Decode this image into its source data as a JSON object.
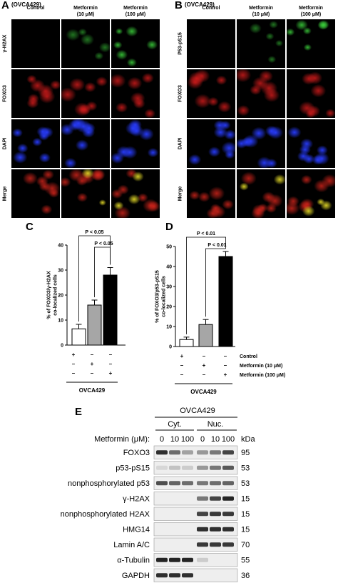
{
  "panelA": {
    "letter": "A",
    "cell_line": "(OVCA429)",
    "columns": [
      "Control",
      "Metformin\n(10 μM)",
      "Metformin\n(100 μM)"
    ],
    "rows": [
      "γ-H2AX",
      "FOXO3",
      "DAPI",
      "Merge"
    ]
  },
  "panelB": {
    "letter": "B",
    "cell_line": "(OVCA429)",
    "columns": [
      "Control",
      "Metformin\n(10 μM)",
      "Metformin\n(100 μM)"
    ],
    "rows": [
      "P53-pS15",
      "FOXO3",
      "DAPI",
      "Merge"
    ]
  },
  "chart_data": [
    {
      "type": "bar",
      "panel": "C",
      "categories": [
        "Control",
        "Metformin (10 μM)",
        "Metformin (100 μM)"
      ],
      "values": [
        6.5,
        16,
        28
      ],
      "errors": [
        1.8,
        2,
        3
      ],
      "colors": [
        "#ffffff",
        "#a6a6a6",
        "#000000"
      ],
      "ylabel": "% of FOXO3/γ-H2AX co-localized cells",
      "ylim": [
        0,
        40
      ],
      "yticks": [
        0,
        10,
        20,
        30,
        40
      ],
      "significance": [
        {
          "from": 0,
          "to": 2,
          "label": "P < 0.05"
        },
        {
          "from": 1,
          "to": 2,
          "label": "P < 0.05"
        }
      ],
      "xgroup_label": "OVCA429"
    },
    {
      "type": "bar",
      "panel": "D",
      "categories": [
        "Control",
        "Metformin (10 μM)",
        "Metformin (100 μM)"
      ],
      "values": [
        3.5,
        11,
        45
      ],
      "errors": [
        1.2,
        2.5,
        2.5
      ],
      "colors": [
        "#ffffff",
        "#a6a6a6",
        "#000000"
      ],
      "ylabel": "% of FOXO3/p53-pS15 co-localized cells",
      "ylim": [
        0,
        50
      ],
      "yticks": [
        0,
        10,
        20,
        30,
        40,
        50
      ],
      "significance": [
        {
          "from": 0,
          "to": 2,
          "label": "P < 0.01"
        },
        {
          "from": 1,
          "to": 2,
          "label": "P < 0.01"
        }
      ],
      "xgroup_label": "OVCA429"
    }
  ],
  "treatment_table": {
    "rows": [
      {
        "label": "Control",
        "signs": [
          "+",
          "–",
          "–"
        ]
      },
      {
        "label": "Metformin (10 μM)",
        "signs": [
          "–",
          "+",
          "–"
        ]
      },
      {
        "label": "Metformin (100 μM)",
        "signs": [
          "–",
          "–",
          "+"
        ]
      }
    ],
    "c_rows": [
      [
        "+",
        "–",
        "–"
      ],
      [
        "–",
        "+",
        "–"
      ],
      [
        "–",
        "–",
        "+"
      ]
    ]
  },
  "panelE": {
    "letter": "E",
    "cell_line": "OVCA429",
    "groups": [
      "Cyt.",
      "Nuc."
    ],
    "metformin_label": "Metformin (μM):",
    "doses": [
      "0",
      "10",
      "100",
      "0",
      "10",
      "100"
    ],
    "kda_label": "kDa",
    "blots": [
      {
        "label": "FOXO3",
        "kda": "95",
        "levels": [
          0.85,
          0.55,
          0.3,
          0.35,
          0.5,
          0.75
        ]
      },
      {
        "label": "p53-pS15",
        "kda": "53",
        "levels": [
          0.05,
          0.15,
          0.1,
          0.35,
          0.5,
          0.65
        ]
      },
      {
        "label": "nonphosphorylated p53",
        "kda": "53",
        "levels": [
          0.7,
          0.6,
          0.55,
          0.5,
          0.55,
          0.6
        ]
      },
      {
        "label": "γ-H2AX",
        "kda": "15",
        "levels": [
          0.0,
          0.0,
          0.0,
          0.5,
          0.75,
          0.9
        ]
      },
      {
        "label": "nonphosphorylated H2AX",
        "kda": "15",
        "levels": [
          0.0,
          0.0,
          0.0,
          0.75,
          0.8,
          0.8
        ]
      },
      {
        "label": "HMG14",
        "kda": "15",
        "levels": [
          0.0,
          0.0,
          0.0,
          0.85,
          0.85,
          0.85
        ]
      },
      {
        "label": "Lamin A/C",
        "kda": "70",
        "levels": [
          0.0,
          0.0,
          0.0,
          0.8,
          0.8,
          0.8
        ]
      },
      {
        "label": "α-Tubulin",
        "kda": "55",
        "levels": [
          0.9,
          0.9,
          0.9,
          0.1,
          0.0,
          0.0
        ]
      },
      {
        "label": "GAPDH",
        "kda": "36",
        "levels": [
          0.85,
          0.85,
          0.85,
          0.0,
          0.0,
          0.0
        ]
      }
    ]
  }
}
